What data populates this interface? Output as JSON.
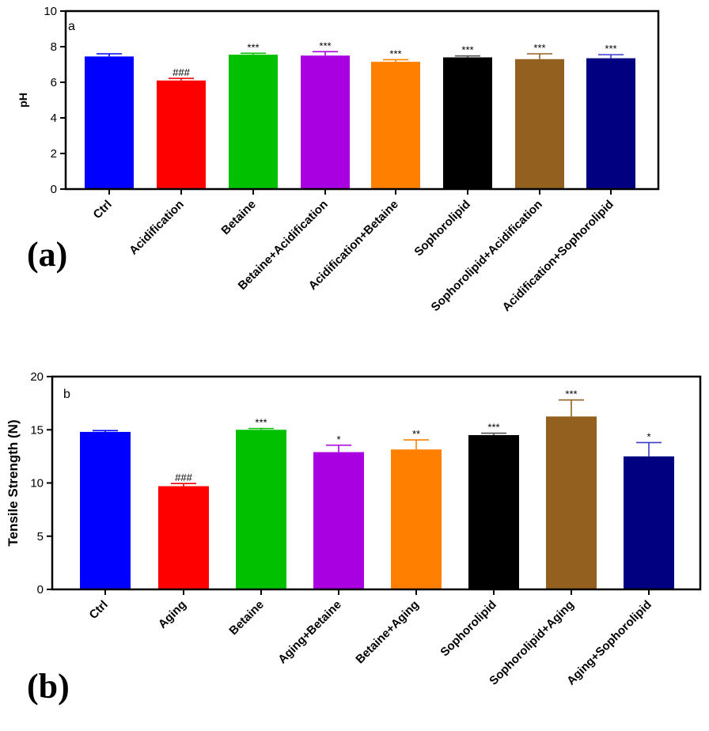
{
  "colors": [
    "#0000ff",
    "#ff0000",
    "#00c000",
    "#a800e0",
    "#ff8000",
    "#000000",
    "#946020",
    "#000080"
  ],
  "error_colors": [
    "#0000ff",
    "#ff0000",
    "#00c000",
    "#a800e0",
    "#ff8000",
    "#555555",
    "#946020",
    "#3a3ad0"
  ],
  "chart_data": [
    {
      "type": "bar",
      "panel_letter": "a",
      "figure_label": "(a)",
      "title": "",
      "xlabel": "",
      "ylabel": "pH",
      "ylim": [
        0,
        10
      ],
      "yticks": [
        0,
        2,
        4,
        6,
        8,
        10
      ],
      "categories": [
        "Ctrl",
        "Acidification",
        "Betaine",
        "Betaine+Acidification",
        "Acidification+Betaine",
        "Sophorolipid",
        "Sophorolipid+Acidification",
        "Acidification+Sophorolipid"
      ],
      "values": [
        7.45,
        6.1,
        7.55,
        7.5,
        7.15,
        7.4,
        7.3,
        7.35
      ],
      "errors": [
        0.15,
        0.12,
        0.08,
        0.22,
        0.12,
        0.08,
        0.3,
        0.2
      ],
      "annotations": [
        "",
        "###",
        "***",
        "***",
        "***",
        "***",
        "***",
        "***"
      ]
    },
    {
      "type": "bar",
      "panel_letter": "b",
      "figure_label": "(b)",
      "title": "",
      "xlabel": "",
      "ylabel": "Tensile Strength (N)",
      "ylim": [
        0,
        20
      ],
      "yticks": [
        0,
        5,
        10,
        15,
        20
      ],
      "categories": [
        "Ctrl",
        "Aging",
        "Betaine",
        "Aging+Betaine",
        "Betaine+Aging",
        "Sophorolipid",
        "Sophorolipid+Aging",
        "Aging+Sophorolipid"
      ],
      "values": [
        14.8,
        9.7,
        15.0,
        12.9,
        13.15,
        14.5,
        16.25,
        12.5
      ],
      "errors": [
        0.12,
        0.25,
        0.12,
        0.65,
        0.9,
        0.18,
        1.55,
        1.3
      ],
      "annotations": [
        "",
        "###",
        "***",
        "*",
        "**",
        "***",
        "***",
        "*"
      ]
    }
  ]
}
